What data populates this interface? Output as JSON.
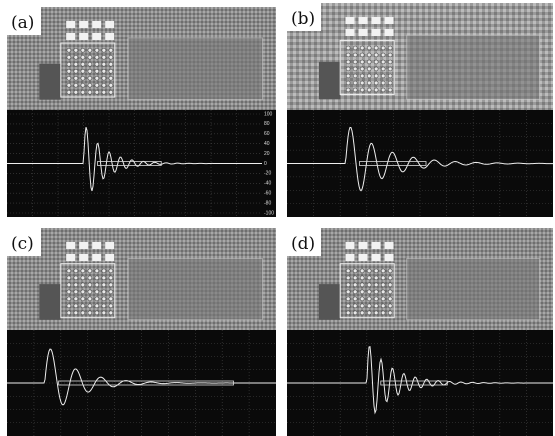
{
  "panels": [
    {
      "label": "(a)",
      "scope": {
        "yticks": [
          100,
          80,
          60,
          40,
          20,
          0,
          -20,
          -40,
          -60,
          -80,
          -100
        ]
      }
    },
    {
      "label": "(b)"
    },
    {
      "label": "(c)"
    },
    {
      "label": "(d)"
    }
  ]
}
